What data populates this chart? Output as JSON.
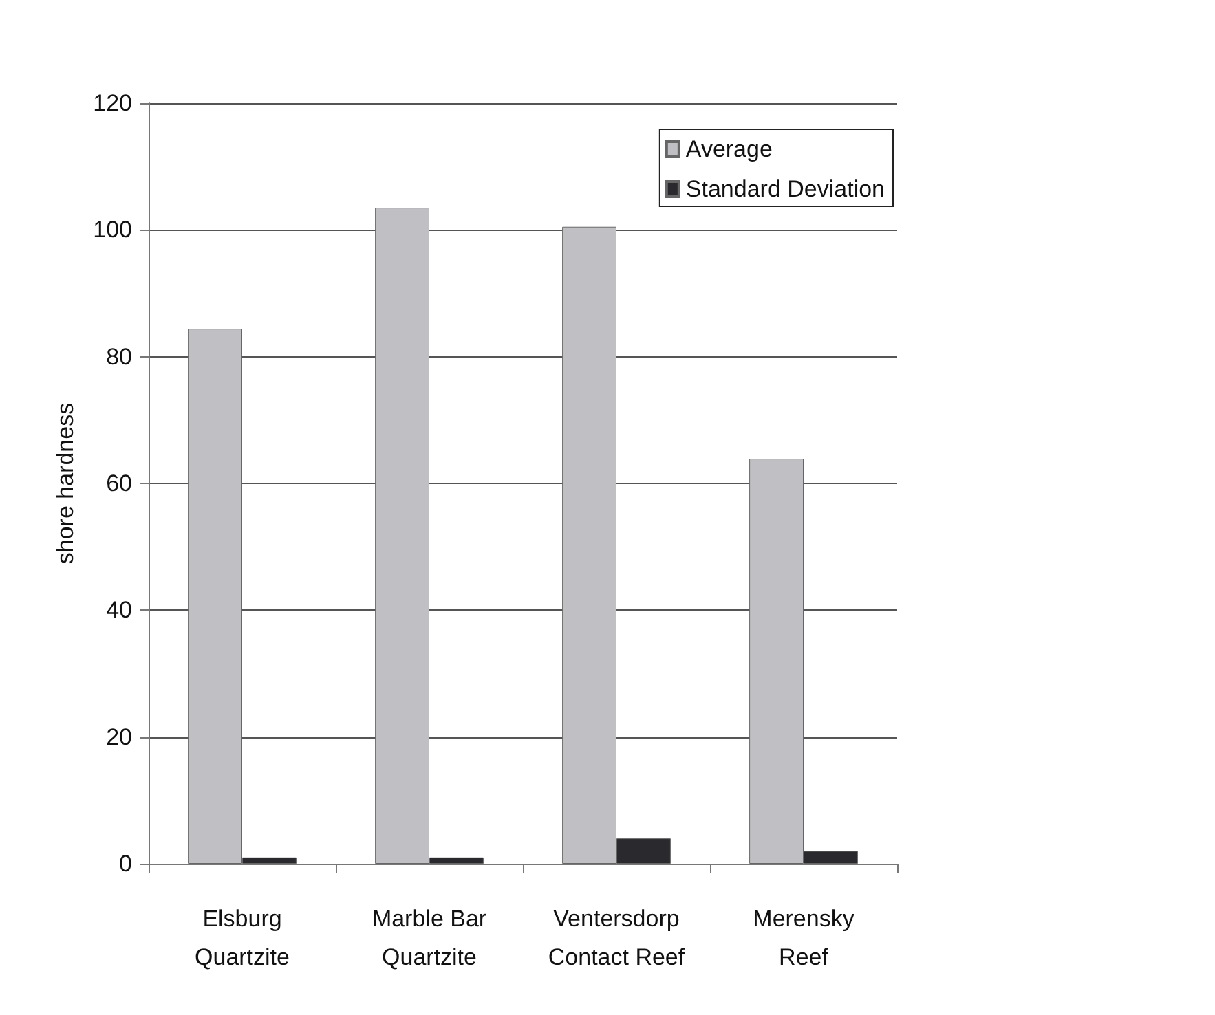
{
  "chart_data": {
    "type": "bar",
    "ylabel": "shore hardness",
    "categories": [
      "Elsburg\nQuartzite",
      "Marble Bar\nQuartzite",
      "Ventersdorp\nContact Reef",
      "Merensky\nReef"
    ],
    "series": [
      {
        "name": "Average",
        "color": "#c0c0c4",
        "values": [
          84.4,
          103.5,
          100.5,
          63.9
        ]
      },
      {
        "name": "Standard Deviation",
        "color": "#2a2a2e",
        "values": [
          1,
          1,
          4,
          2
        ]
      }
    ],
    "ylim": [
      0,
      120
    ],
    "yticks": [
      0,
      20,
      40,
      60,
      80,
      100,
      120
    ],
    "grid": "y",
    "legend": "top right"
  }
}
